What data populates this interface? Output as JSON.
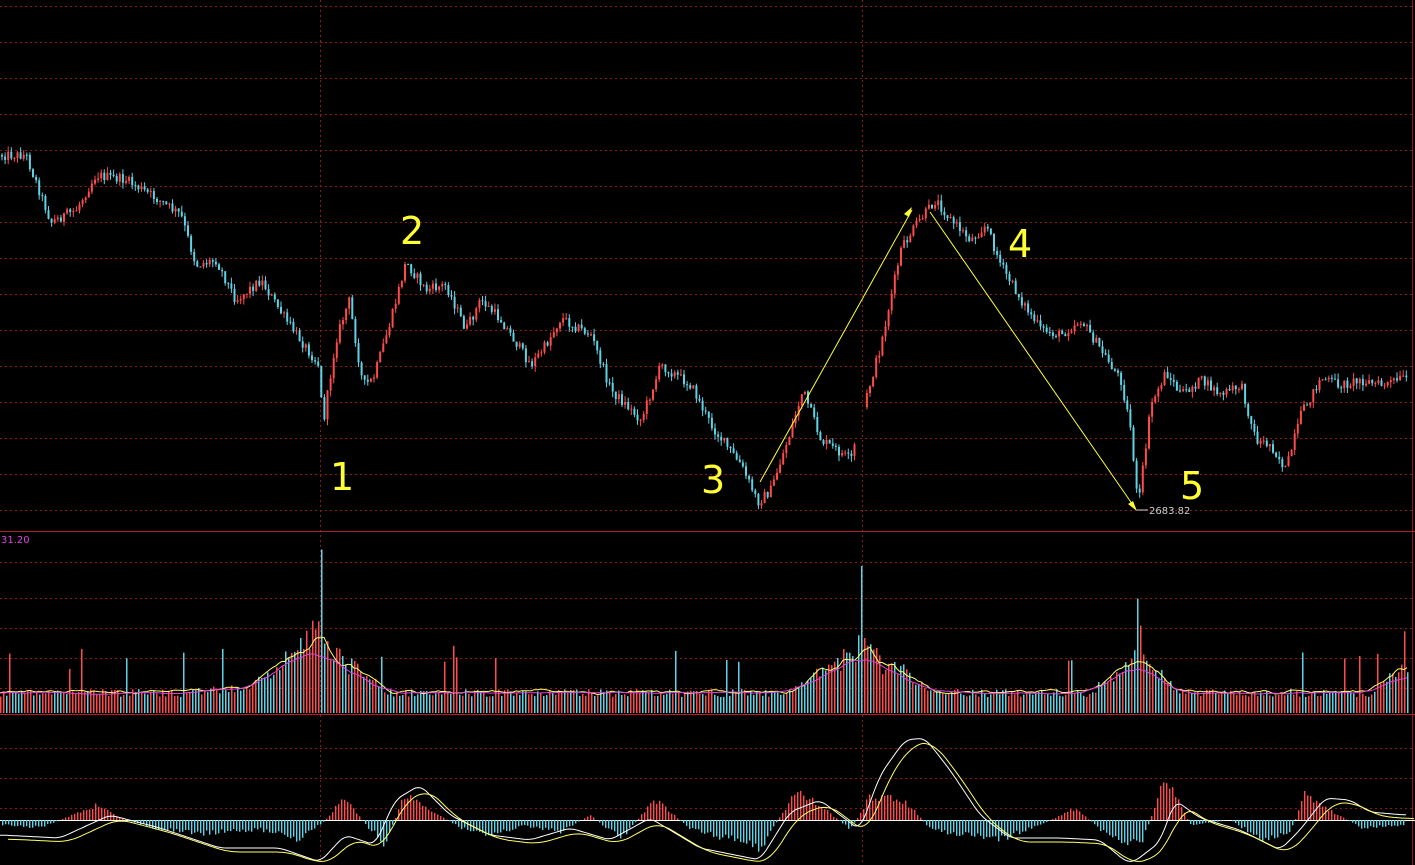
{
  "colors": {
    "background": "#000000",
    "grid": "#8b1a1a",
    "separator": "#b0202a",
    "up": "#ff4b4b",
    "down": "#5fd3e6",
    "ma1": "#ffff66",
    "ma2": "#e040e0",
    "annotation": "#ffff33",
    "low_label": "#cfcfcf",
    "scale_label": "#e040e0"
  },
  "volume_scale_label": "31.20",
  "low_price_label": "2683.82",
  "wave_labels": [
    "1",
    "2",
    "3",
    "4",
    "5"
  ],
  "chart_data": [
    {
      "type": "candlestick",
      "panel": "price",
      "notes": "Daily candlestick chart with Elliott-wave style numbered points and trend arrows",
      "annotated_low": 2683.82,
      "points": [
        {
          "label": "1",
          "x": 325
        },
        {
          "label": "2",
          "x": 405
        },
        {
          "label": "3",
          "x": 757
        },
        {
          "label": "4",
          "x": 935
        },
        {
          "label": "5",
          "x": 1137
        }
      ],
      "close_path": [
        [
          0,
          155
        ],
        [
          25,
          155
        ],
        [
          50,
          222
        ],
        [
          75,
          210
        ],
        [
          95,
          175
        ],
        [
          125,
          180
        ],
        [
          150,
          195
        ],
        [
          180,
          215
        ],
        [
          195,
          265
        ],
        [
          215,
          260
        ],
        [
          235,
          300
        ],
        [
          260,
          280
        ],
        [
          285,
          320
        ],
        [
          318,
          365
        ],
        [
          322,
          425
        ],
        [
          335,
          340
        ],
        [
          348,
          300
        ],
        [
          362,
          385
        ],
        [
          372,
          380
        ],
        [
          390,
          320
        ],
        [
          405,
          262
        ],
        [
          425,
          290
        ],
        [
          445,
          285
        ],
        [
          465,
          330
        ],
        [
          480,
          300
        ],
        [
          500,
          320
        ],
        [
          530,
          365
        ],
        [
          545,
          345
        ],
        [
          560,
          318
        ],
        [
          590,
          335
        ],
        [
          610,
          390
        ],
        [
          640,
          420
        ],
        [
          660,
          365
        ],
        [
          690,
          385
        ],
        [
          710,
          425
        ],
        [
          740,
          465
        ],
        [
          757,
          502
        ],
        [
          770,
          490
        ],
        [
          790,
          430
        ],
        [
          802,
          390
        ],
        [
          820,
          440
        ],
        [
          850,
          460
        ],
        [
          862,
          410
        ],
        [
          880,
          345
        ],
        [
          900,
          250
        ],
        [
          915,
          225
        ],
        [
          935,
          200
        ],
        [
          950,
          220
        ],
        [
          970,
          240
        ],
        [
          985,
          225
        ],
        [
          1000,
          265
        ],
        [
          1020,
          300
        ],
        [
          1040,
          330
        ],
        [
          1060,
          335
        ],
        [
          1080,
          320
        ],
        [
          1100,
          350
        ],
        [
          1120,
          380
        ],
        [
          1130,
          430
        ],
        [
          1137,
          508
        ],
        [
          1150,
          405
        ],
        [
          1165,
          372
        ],
        [
          1180,
          395
        ],
        [
          1200,
          380
        ],
        [
          1220,
          395
        ],
        [
          1240,
          385
        ],
        [
          1255,
          440
        ],
        [
          1270,
          445
        ],
        [
          1285,
          470
        ],
        [
          1300,
          415
        ],
        [
          1320,
          378
        ],
        [
          1340,
          385
        ],
        [
          1360,
          380
        ],
        [
          1380,
          385
        ],
        [
          1405,
          378
        ]
      ]
    },
    {
      "type": "bar",
      "panel": "volume",
      "ylim_label": "31.20",
      "series": [
        {
          "kind": "volume bars"
        },
        {
          "kind": "moving average 1"
        },
        {
          "kind": "moving average 2"
        }
      ],
      "spikes": [
        {
          "x": 320,
          "value": 30.0
        },
        {
          "x": 862,
          "value": 27.0
        },
        {
          "x": 1136,
          "value": 21.0
        },
        {
          "x": 1405,
          "value": 15.0
        }
      ]
    },
    {
      "type": "bar",
      "panel": "macd",
      "series": [
        {
          "kind": "histogram"
        },
        {
          "kind": "fast line"
        },
        {
          "kind": "slow line"
        }
      ],
      "zero_line": true
    }
  ]
}
